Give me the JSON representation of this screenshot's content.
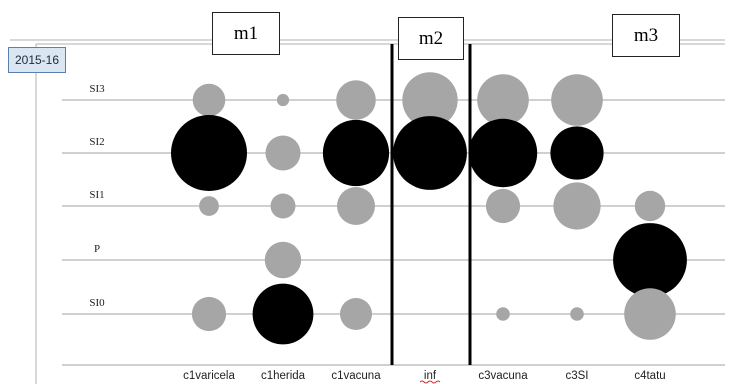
{
  "year_label": "2015-16",
  "groups": [
    {
      "label": "m1"
    },
    {
      "label": "m2"
    },
    {
      "label": "m3"
    }
  ],
  "colors": {
    "gray": "#a6a6a6",
    "black": "#000000",
    "grid": "#a0a0a0"
  },
  "chart_data": {
    "type": "scatter",
    "y_categories": [
      "SI3",
      "SI2",
      "SI1",
      "P",
      "SI0"
    ],
    "x_categories": [
      "c1varicela",
      "c1herida",
      "c1vacuna",
      "inf",
      "c3vacuna",
      "c3SI",
      "c4tatu"
    ],
    "points": [
      {
        "x": "c1varicela",
        "y": "SI3",
        "size": 0.43,
        "color": "gray"
      },
      {
        "x": "c1varicela",
        "y": "SI2",
        "size": 1.0,
        "color": "black"
      },
      {
        "x": "c1varicela",
        "y": "SI1",
        "size": 0.26,
        "color": "gray"
      },
      {
        "x": "c1varicela",
        "y": "SI0",
        "size": 0.45,
        "color": "gray"
      },
      {
        "x": "c1herida",
        "y": "SI3",
        "size": 0.16,
        "color": "gray"
      },
      {
        "x": "c1herida",
        "y": "SI2",
        "size": 0.46,
        "color": "gray"
      },
      {
        "x": "c1herida",
        "y": "SI1",
        "size": 0.33,
        "color": "gray"
      },
      {
        "x": "c1herida",
        "y": "P",
        "size": 0.48,
        "color": "gray"
      },
      {
        "x": "c1herida",
        "y": "SI0",
        "size": 0.8,
        "color": "black"
      },
      {
        "x": "c1vacuna",
        "y": "SI3",
        "size": 0.52,
        "color": "gray"
      },
      {
        "x": "c1vacuna",
        "y": "SI2",
        "size": 0.87,
        "color": "black"
      },
      {
        "x": "c1vacuna",
        "y": "SI1",
        "size": 0.5,
        "color": "gray"
      },
      {
        "x": "c1vacuna",
        "y": "SI0",
        "size": 0.42,
        "color": "gray"
      },
      {
        "x": "inf",
        "y": "SI3",
        "size": 0.73,
        "color": "gray"
      },
      {
        "x": "inf",
        "y": "SI2",
        "size": 0.97,
        "color": "black"
      },
      {
        "x": "c3vacuna",
        "y": "SI3",
        "size": 0.68,
        "color": "gray"
      },
      {
        "x": "c3vacuna",
        "y": "SI2",
        "size": 0.9,
        "color": "black"
      },
      {
        "x": "c3vacuna",
        "y": "SI1",
        "size": 0.45,
        "color": "gray"
      },
      {
        "x": "c3vacuna",
        "y": "SI0",
        "size": 0.18,
        "color": "gray"
      },
      {
        "x": "c3SI",
        "y": "SI3",
        "size": 0.68,
        "color": "gray"
      },
      {
        "x": "c3SI",
        "y": "SI2",
        "size": 0.7,
        "color": "black"
      },
      {
        "x": "c3SI",
        "y": "SI1",
        "size": 0.62,
        "color": "gray"
      },
      {
        "x": "c3SI",
        "y": "SI0",
        "size": 0.18,
        "color": "gray"
      },
      {
        "x": "c4tatu",
        "y": "SI1",
        "size": 0.4,
        "color": "gray"
      },
      {
        "x": "c4tatu",
        "y": "P",
        "size": 0.97,
        "color": "black"
      },
      {
        "x": "c4tatu",
        "y": "SI0",
        "size": 0.68,
        "color": "gray"
      }
    ]
  }
}
